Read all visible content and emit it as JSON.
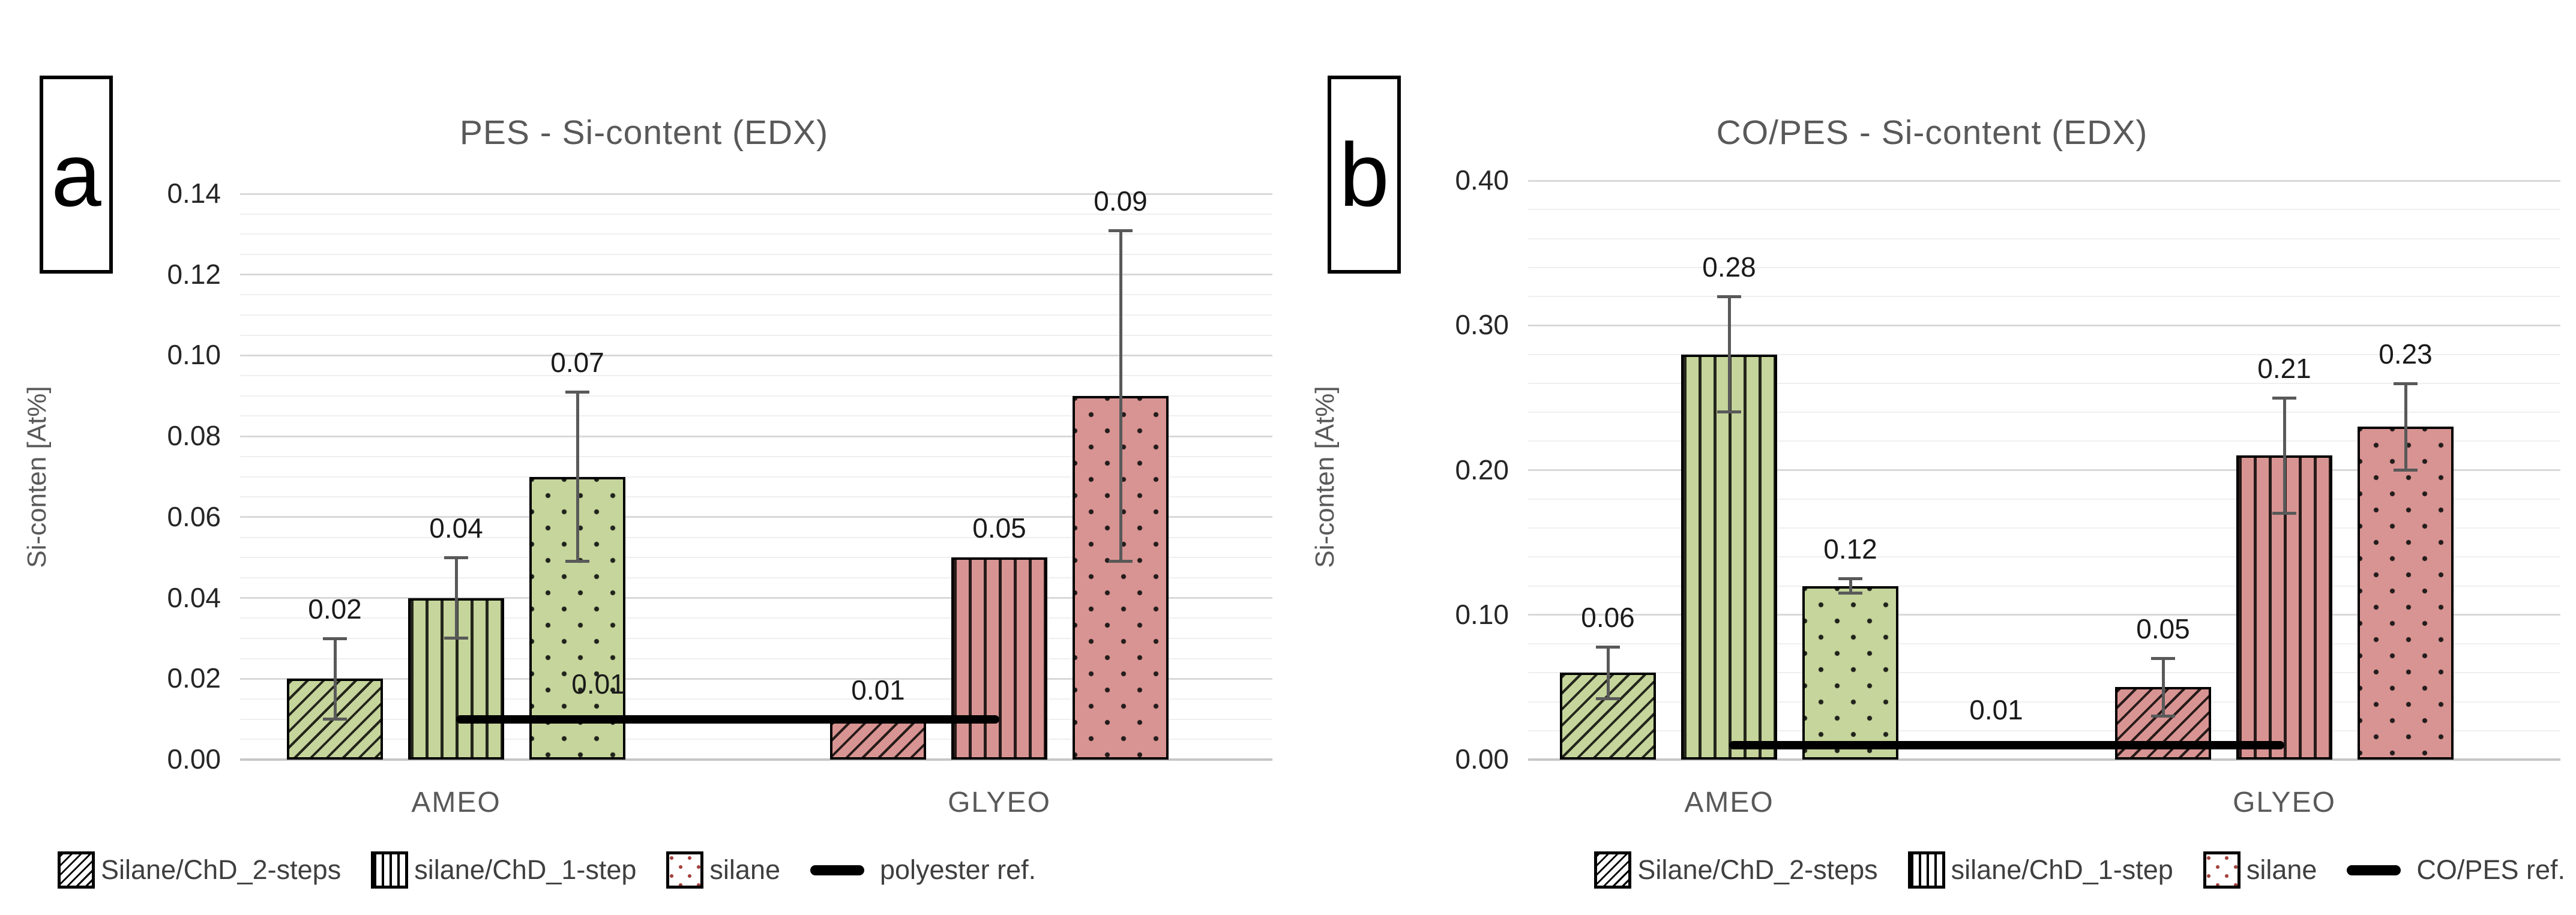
{
  "page": {
    "background": "#ffffff"
  },
  "colors": {
    "ameo_fill": "#c5d59b",
    "glyeo_fill": "#d89492",
    "bar_border": "#000000",
    "error_bar": "#595959",
    "title_text": "#595959",
    "tick_text": "#262626",
    "major_grid": "#d9d9d9",
    "minor_grid": "#efefef",
    "reference_line": "#000000",
    "legend_dot_swatch": "#a23f3a"
  },
  "chart_data": [
    {
      "type": "bar",
      "panel_label": "a",
      "title": "PES - Si-content (EDX)",
      "xlabel": "",
      "ylabel": "Si-conten [At%]",
      "ylim": [
        0,
        0.14
      ],
      "ytick_step": 0.02,
      "yminor_step": 0.005,
      "ytick_labels": [
        "0.00",
        "0.02",
        "0.04",
        "0.06",
        "0.08",
        "0.10",
        "0.12",
        "0.14"
      ],
      "categories": [
        "AMEO",
        "GLYEO"
      ],
      "category_colors": {
        "AMEO": "#c5d59b",
        "GLYEO": "#d89492"
      },
      "grid": true,
      "legend_position": "bottom-left",
      "series": [
        {
          "name": "Silane/ChD_2-steps",
          "pattern": "diagonal-hatch",
          "values": [
            0.02,
            0.01
          ],
          "errors": [
            0.01,
            0
          ],
          "value_labels": [
            "0.02",
            "0.01"
          ]
        },
        {
          "name": "silane/ChD_1-step",
          "pattern": "vertical-stripes",
          "values": [
            0.04,
            0.05
          ],
          "errors": [
            0.01,
            0
          ],
          "value_labels": [
            "0.04",
            "0.05"
          ]
        },
        {
          "name": "silane",
          "pattern": "dots",
          "values": [
            0.07,
            0.09
          ],
          "errors": [
            0.021,
            0.041
          ],
          "value_labels": [
            "0.07",
            "0.09"
          ]
        }
      ],
      "reference_line": {
        "name": "polyester ref.",
        "value": 0.01,
        "label": "0.01"
      }
    },
    {
      "type": "bar",
      "panel_label": "b",
      "title": "CO/PES - Si-content (EDX)",
      "xlabel": "",
      "ylabel": "Si-conten [At%]",
      "ylim": [
        0,
        0.4
      ],
      "ytick_step": 0.1,
      "yminor_step": 0.02,
      "ytick_labels": [
        "0.00",
        "0.10",
        "0.20",
        "0.30",
        "0.40"
      ],
      "categories": [
        "AMEO",
        "GLYEO"
      ],
      "category_colors": {
        "AMEO": "#c5d59b",
        "GLYEO": "#d89492"
      },
      "grid": true,
      "legend_position": "bottom-right",
      "series": [
        {
          "name": "Silane/ChD_2-steps",
          "pattern": "diagonal-hatch",
          "values": [
            0.06,
            0.05
          ],
          "errors": [
            0.018,
            0.02
          ],
          "value_labels": [
            "0.06",
            "0.05"
          ]
        },
        {
          "name": "silane/ChD_1-step",
          "pattern": "vertical-stripes",
          "values": [
            0.28,
            0.21
          ],
          "errors": [
            0.04,
            0.04
          ],
          "value_labels": [
            "0.28",
            "0.21"
          ]
        },
        {
          "name": "silane",
          "pattern": "dots",
          "values": [
            0.12,
            0.23
          ],
          "errors": [
            0.005,
            0.03
          ],
          "value_labels": [
            "0.12",
            "0.23"
          ]
        }
      ],
      "reference_line": {
        "name": "CO/PES ref.",
        "value": 0.01,
        "label": "0.01"
      }
    }
  ]
}
